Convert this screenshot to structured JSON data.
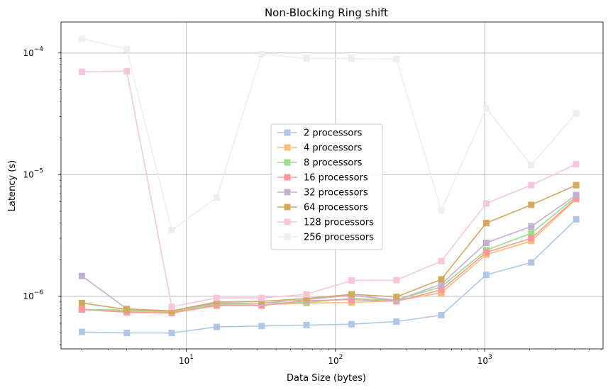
{
  "chart_data": {
    "type": "line",
    "title": "Non-Blocking Ring shift",
    "xlabel": "Data Size (bytes)",
    "ylabel": "Latency (s)",
    "x_scale": "log",
    "y_scale": "log",
    "xlim": [
      1.45,
      6200
    ],
    "ylim": [
      3.7e-07,
      0.00018
    ],
    "grid": true,
    "legend_position": "center",
    "x_ticks": [
      {
        "value": 10,
        "base": "10",
        "exp": "1"
      },
      {
        "value": 100,
        "base": "10",
        "exp": "2"
      },
      {
        "value": 1000,
        "base": "10",
        "exp": "3"
      }
    ],
    "y_ticks": [
      {
        "value": 1e-06,
        "base": "10",
        "exp": "−6"
      },
      {
        "value": 1e-05,
        "base": "10",
        "exp": "−5"
      },
      {
        "value": 0.0001,
        "base": "10",
        "exp": "−4"
      }
    ],
    "x": [
      2,
      4,
      8,
      16,
      32,
      64,
      128,
      256,
      512,
      1024,
      2048,
      4096
    ],
    "series": [
      {
        "name": "2 processors",
        "color": "#aec7e8",
        "values": [
          5.1e-07,
          5e-07,
          5e-07,
          5.6e-07,
          5.7e-07,
          5.8e-07,
          5.9e-07,
          6.2e-07,
          7e-07,
          1.5e-06,
          1.9e-06,
          4.3e-06
        ]
      },
      {
        "name": "4 processors",
        "color": "#ffbb78",
        "values": [
          7.8e-07,
          7.5e-07,
          7.4e-07,
          8.5e-07,
          8.5e-07,
          8.8e-07,
          8.9e-07,
          9.2e-07,
          1.07e-06,
          2.2e-06,
          2.85e-06,
          6.3e-06
        ]
      },
      {
        "name": "8 processors",
        "color": "#98df8a",
        "values": [
          7.8e-07,
          7.7e-07,
          7.5e-07,
          8.6e-07,
          8.8e-07,
          8.9e-07,
          9.6e-07,
          9.3e-07,
          1.2e-06,
          2.4e-06,
          3.3e-06,
          6.6e-06
        ]
      },
      {
        "name": "16 processors",
        "color": "#ff9896",
        "values": [
          7.8e-07,
          7.4e-07,
          7.3e-07,
          8.4e-07,
          8.4e-07,
          9.2e-07,
          9.4e-07,
          9.1e-07,
          1.13e-06,
          2.3e-06,
          3e-06,
          6.4e-06
        ]
      },
      {
        "name": "32 processors",
        "color": "#c5b0d5",
        "values": [
          1.47e-06,
          7.9e-07,
          7.6e-07,
          8.8e-07,
          8.8e-07,
          9.4e-07,
          1.02e-06,
          9.3e-07,
          1.26e-06,
          2.75e-06,
          3.75e-06,
          6.8e-06
        ]
      },
      {
        "name": "64 processors",
        "color": "#d4a95a",
        "values": [
          8.8e-07,
          7.8e-07,
          7.6e-07,
          9e-07,
          9.1e-07,
          9.6e-07,
          1.04e-06,
          9.9e-07,
          1.38e-06,
          4e-06,
          5.65e-06,
          8.2e-06
        ]
      },
      {
        "name": "128 processors",
        "color": "#f7c6dc",
        "values": [
          7e-05,
          7.1e-05,
          8.2e-07,
          9.7e-07,
          9.7e-07,
          1.04e-06,
          1.35e-06,
          1.36e-06,
          1.95e-06,
          5.8e-06,
          8.2e-06,
          1.22e-05
        ]
      },
      {
        "name": "256 processors",
        "color": "#eeeeee",
        "values": [
          0.000131,
          0.000108,
          3.5e-06,
          6.5e-06,
          9.8e-05,
          9e-05,
          9e-05,
          8.9e-05,
          5.1e-06,
          3.5e-05,
          1.2e-05,
          3.2e-05
        ]
      }
    ]
  }
}
